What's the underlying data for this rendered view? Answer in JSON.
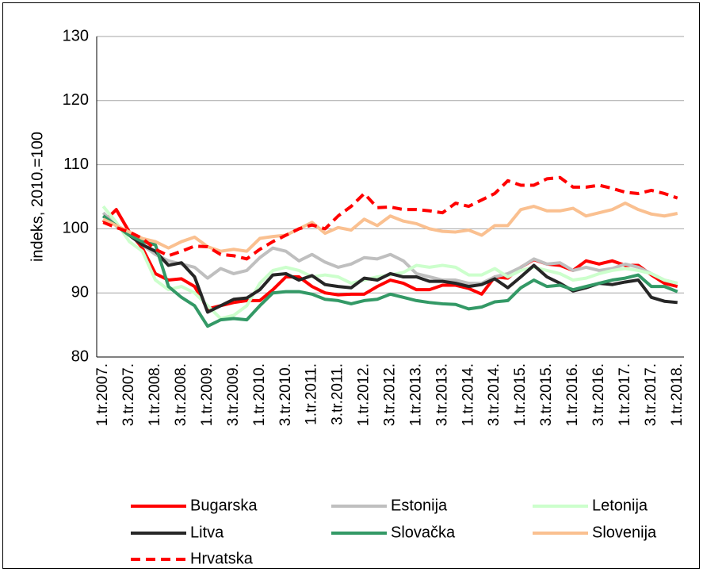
{
  "chart_data": {
    "type": "line",
    "y_label": "indeks, 2010.=100",
    "categories": [
      "1.tr.2007.",
      null,
      "3.tr.2007.",
      null,
      "1.tr.2008.",
      null,
      "3.tr.2008.",
      null,
      "1.tr.2009.",
      null,
      "3.tr.2009.",
      null,
      "1.tr.2010.",
      null,
      "3.tr.2010.",
      null,
      "1.tr.2011.",
      null,
      "3.tr.2011.",
      null,
      "1.tr.2012.",
      null,
      "3.tr.2012.",
      null,
      "1.tr.2013.",
      null,
      "3.tr.2013.",
      null,
      "1.tr.2014.",
      null,
      "3.tr.2014.",
      null,
      "1.tr.2015.",
      null,
      "3.tr.2015.",
      null,
      "1.tr.2016.",
      null,
      "3.tr.2016.",
      null,
      "1.tr.2017.",
      null,
      "3.tr.2017.",
      null,
      "1.tr.2018."
    ],
    "ylim": [
      80,
      130
    ],
    "yticks": [
      80,
      90,
      100,
      110,
      120,
      130
    ],
    "grid": true,
    "series": [
      {
        "name": "Bugarska",
        "color": "#ff0000",
        "style": "solid",
        "values": [
          101,
          103,
          99.5,
          97,
          93,
          92,
          92.2,
          91,
          87.5,
          88,
          88.5,
          88.8,
          88.8,
          90.5,
          92.5,
          92.5,
          91,
          90,
          89.7,
          89.8,
          89.8,
          91,
          92,
          91.5,
          90.5,
          90.5,
          91.2,
          91.2,
          90.7,
          89.8,
          92.5,
          92.3,
          94,
          95.2,
          94.5,
          94.3,
          93.5,
          95,
          94.5,
          95,
          94.3,
          94.3,
          92.8,
          91.5,
          91
        ]
      },
      {
        "name": "Estonija",
        "color": "#bfbfbf",
        "style": "solid",
        "values": [
          102.5,
          100.5,
          99,
          97.5,
          96,
          95,
          94.5,
          94,
          92.3,
          93.8,
          93,
          93.5,
          95.5,
          97,
          96.5,
          95,
          96,
          94.8,
          94,
          94.5,
          95.5,
          95.3,
          96,
          95,
          93,
          92.5,
          92,
          92,
          91.5,
          91.5,
          92.5,
          93,
          94,
          95.3,
          94.5,
          94.7,
          93.5,
          94,
          93.5,
          93.8,
          94.5,
          94,
          93,
          92,
          91.5
        ]
      },
      {
        "name": "Letonija",
        "color": "#ccffcc",
        "style": "solid",
        "values": [
          103.5,
          101,
          98,
          96.5,
          92,
          90.5,
          91,
          90,
          88,
          86,
          86.5,
          88,
          91.5,
          93.5,
          94,
          93.5,
          92.5,
          92.8,
          92.5,
          91.5,
          92,
          92.5,
          92.8,
          93.2,
          94.3,
          94,
          94.3,
          94,
          92.8,
          92.8,
          93.8,
          92.5,
          93.5,
          94,
          93.5,
          93,
          92,
          92.3,
          93,
          93.5,
          93.8,
          93.5,
          93,
          92,
          91.5
        ]
      },
      {
        "name": "Litva",
        "color": "#262626",
        "style": "solid",
        "values": [
          102,
          100.5,
          99,
          97.5,
          96.5,
          94.3,
          94.7,
          92.5,
          87,
          88,
          89,
          89.2,
          90.5,
          92.8,
          93,
          92,
          92.7,
          91.3,
          91,
          90.8,
          92.3,
          92,
          93,
          92.5,
          92.5,
          91.8,
          91.8,
          91.5,
          91,
          91.3,
          92.2,
          90.8,
          92.5,
          94.3,
          92.5,
          91.5,
          90.3,
          90.8,
          91.5,
          91.3,
          91.7,
          92,
          89.3,
          88.7,
          88.5
        ]
      },
      {
        "name": "Slovačka",
        "color": "#339966",
        "style": "solid",
        "values": [
          102,
          100.5,
          99,
          98,
          97.5,
          91,
          89.3,
          88,
          84.8,
          85.8,
          86,
          85.8,
          88,
          90,
          90.2,
          90.2,
          89.8,
          89,
          88.8,
          88.3,
          88.8,
          89,
          89.8,
          89.3,
          88.8,
          88.5,
          88.3,
          88.2,
          87.5,
          87.8,
          88.6,
          88.8,
          90.8,
          92,
          91,
          91.2,
          90.5,
          91,
          91.5,
          92,
          92.3,
          92.8,
          91,
          91,
          90.2
        ]
      },
      {
        "name": "Slovenija",
        "color": "#fac090",
        "style": "solid",
        "values": [
          101.5,
          100.5,
          99.5,
          98.5,
          98,
          97,
          98,
          98.7,
          97.2,
          96.5,
          96.8,
          96.5,
          98.5,
          98.8,
          99,
          100,
          101,
          99.3,
          100.2,
          99.8,
          101.5,
          100.5,
          102,
          101.2,
          100.8,
          100,
          99.6,
          99.5,
          99.8,
          99,
          100.5,
          100.5,
          103,
          103.5,
          102.8,
          102.8,
          103.2,
          102,
          102.5,
          103,
          104,
          103,
          102.3,
          102,
          102.4
        ]
      },
      {
        "name": "Hrvatska",
        "color": "#ff0000",
        "style": "dashed",
        "values": [
          101,
          100.2,
          99.5,
          98.5,
          96.8,
          95.8,
          96.5,
          97.3,
          97.2,
          96,
          95.8,
          95.3,
          96.8,
          98,
          99,
          100,
          100.6,
          100,
          102,
          103.5,
          105.5,
          103.3,
          103.4,
          103,
          103,
          102.8,
          102.5,
          104,
          103.5,
          104.5,
          105.5,
          107.5,
          106.8,
          106.8,
          107.8,
          108,
          106.5,
          106.5,
          106.8,
          106.3,
          105.7,
          105.5,
          106,
          105.5,
          104.8
        ]
      }
    ]
  }
}
